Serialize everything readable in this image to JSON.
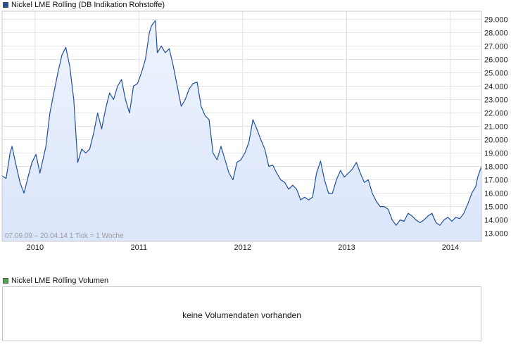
{
  "price_panel": {
    "title": "Nickel LME Rolling (DB Indikation Rohstoffe)",
    "swatch_color": "#1f4fa0",
    "info": "07.09.09 – 20.04.14   1 Tick = 1 Woche"
  },
  "volume_panel": {
    "title": "Nickel LME Rolling Volumen",
    "swatch_color": "#4aa84a",
    "message": "keine Volumendaten vorhanden"
  },
  "chart_data": {
    "type": "area",
    "title": "Nickel LME Rolling (DB Indikation Rohstoffe)",
    "x_start": "2009-09-07",
    "x_end": "2014-04-20",
    "ylim": [
      12400,
      29600
    ],
    "y_ticks": [
      13000,
      14000,
      15000,
      16000,
      17000,
      18000,
      19000,
      20000,
      21000,
      22000,
      23000,
      24000,
      25000,
      26000,
      27000,
      28000,
      29000
    ],
    "y_tick_labels": [
      "13.000",
      "14.000",
      "15.000",
      "16.000",
      "17.000",
      "18.000",
      "19.000",
      "20.000",
      "21.000",
      "22.000",
      "23.000",
      "24.000",
      "25.000",
      "26.000",
      "27.000",
      "28.000",
      "29.000"
    ],
    "x_tick_labels": [
      "2010",
      "2011",
      "2012",
      "2013",
      "2014"
    ],
    "x_tick_dates": [
      "2010-01-01",
      "2011-01-01",
      "2012-01-01",
      "2013-01-01",
      "2014-01-01"
    ],
    "grid": true,
    "line_color": "#1f4fa0",
    "fill_color": "#dbe6fb",
    "series": [
      {
        "values": [
          [
            "2009-09-07",
            17300
          ],
          [
            "2009-09-21",
            17100
          ],
          [
            "2009-10-05",
            19000
          ],
          [
            "2009-10-12",
            19500
          ],
          [
            "2009-10-26",
            18100
          ],
          [
            "2009-11-09",
            16800
          ],
          [
            "2009-11-23",
            16000
          ],
          [
            "2009-12-07",
            17200
          ],
          [
            "2009-12-21",
            18300
          ],
          [
            "2010-01-04",
            18900
          ],
          [
            "2010-01-18",
            17500
          ],
          [
            "2010-02-08",
            19500
          ],
          [
            "2010-02-22",
            22000
          ],
          [
            "2010-03-08",
            23500
          ],
          [
            "2010-03-22",
            25000
          ],
          [
            "2010-04-05",
            26300
          ],
          [
            "2010-04-19",
            26900
          ],
          [
            "2010-05-03",
            25500
          ],
          [
            "2010-05-17",
            23000
          ],
          [
            "2010-05-31",
            18300
          ],
          [
            "2010-06-14",
            19300
          ],
          [
            "2010-06-28",
            19000
          ],
          [
            "2010-07-12",
            19300
          ],
          [
            "2010-07-26",
            20500
          ],
          [
            "2010-08-09",
            22000
          ],
          [
            "2010-08-23",
            20800
          ],
          [
            "2010-09-06",
            22300
          ],
          [
            "2010-09-20",
            23500
          ],
          [
            "2010-10-04",
            23000
          ],
          [
            "2010-10-18",
            24000
          ],
          [
            "2010-11-01",
            24500
          ],
          [
            "2010-11-15",
            23000
          ],
          [
            "2010-11-29",
            22000
          ],
          [
            "2010-12-13",
            24000
          ],
          [
            "2010-12-27",
            24200
          ],
          [
            "2011-01-10",
            25000
          ],
          [
            "2011-01-24",
            26000
          ],
          [
            "2011-02-07",
            28000
          ],
          [
            "2011-02-14",
            28500
          ],
          [
            "2011-02-28",
            28900
          ],
          [
            "2011-03-07",
            26500
          ],
          [
            "2011-03-21",
            27000
          ],
          [
            "2011-04-04",
            26500
          ],
          [
            "2011-04-18",
            26800
          ],
          [
            "2011-05-02",
            25500
          ],
          [
            "2011-05-16",
            24000
          ],
          [
            "2011-05-30",
            22500
          ],
          [
            "2011-06-13",
            23000
          ],
          [
            "2011-06-27",
            23800
          ],
          [
            "2011-07-11",
            24200
          ],
          [
            "2011-07-25",
            24300
          ],
          [
            "2011-08-08",
            22500
          ],
          [
            "2011-08-22",
            21800
          ],
          [
            "2011-09-05",
            21500
          ],
          [
            "2011-09-19",
            19000
          ],
          [
            "2011-10-03",
            18500
          ],
          [
            "2011-10-17",
            19500
          ],
          [
            "2011-10-31",
            18500
          ],
          [
            "2011-11-14",
            17500
          ],
          [
            "2011-11-28",
            17000
          ],
          [
            "2011-12-12",
            18300
          ],
          [
            "2011-12-26",
            18500
          ],
          [
            "2012-01-09",
            19000
          ],
          [
            "2012-01-23",
            19800
          ],
          [
            "2012-02-06",
            21500
          ],
          [
            "2012-02-20",
            20800
          ],
          [
            "2012-03-05",
            20000
          ],
          [
            "2012-03-19",
            19300
          ],
          [
            "2012-04-02",
            18000
          ],
          [
            "2012-04-16",
            18100
          ],
          [
            "2012-04-30",
            17500
          ],
          [
            "2012-05-14",
            17000
          ],
          [
            "2012-05-28",
            16800
          ],
          [
            "2012-06-11",
            16300
          ],
          [
            "2012-06-25",
            16600
          ],
          [
            "2012-07-09",
            16300
          ],
          [
            "2012-07-23",
            15500
          ],
          [
            "2012-08-06",
            15700
          ],
          [
            "2012-08-20",
            15500
          ],
          [
            "2012-09-03",
            15700
          ],
          [
            "2012-09-17",
            17500
          ],
          [
            "2012-10-01",
            18400
          ],
          [
            "2012-10-15",
            17000
          ],
          [
            "2012-10-29",
            16000
          ],
          [
            "2012-11-12",
            16000
          ],
          [
            "2012-11-26",
            17000
          ],
          [
            "2012-12-10",
            17700
          ],
          [
            "2012-12-24",
            17200
          ],
          [
            "2013-01-07",
            17500
          ],
          [
            "2013-01-21",
            17800
          ],
          [
            "2013-02-04",
            18300
          ],
          [
            "2013-02-18",
            17500
          ],
          [
            "2013-03-04",
            16800
          ],
          [
            "2013-03-18",
            17000
          ],
          [
            "2013-04-01",
            16000
          ],
          [
            "2013-04-15",
            15400
          ],
          [
            "2013-04-29",
            15000
          ],
          [
            "2013-05-13",
            15000
          ],
          [
            "2013-05-27",
            14800
          ],
          [
            "2013-06-10",
            14000
          ],
          [
            "2013-06-24",
            13600
          ],
          [
            "2013-07-08",
            14000
          ],
          [
            "2013-07-22",
            13900
          ],
          [
            "2013-08-05",
            14500
          ],
          [
            "2013-08-19",
            14300
          ],
          [
            "2013-09-02",
            14000
          ],
          [
            "2013-09-16",
            13800
          ],
          [
            "2013-09-30",
            14000
          ],
          [
            "2013-10-14",
            14300
          ],
          [
            "2013-10-28",
            14500
          ],
          [
            "2013-11-11",
            13800
          ],
          [
            "2013-11-25",
            13600
          ],
          [
            "2013-12-09",
            14000
          ],
          [
            "2013-12-23",
            14200
          ],
          [
            "2014-01-06",
            13900
          ],
          [
            "2014-01-20",
            14200
          ],
          [
            "2014-02-03",
            14100
          ],
          [
            "2014-02-17",
            14500
          ],
          [
            "2014-03-03",
            15200
          ],
          [
            "2014-03-17",
            16000
          ],
          [
            "2014-03-31",
            16500
          ],
          [
            "2014-04-07",
            17200
          ],
          [
            "2014-04-20",
            18000
          ]
        ]
      }
    ]
  }
}
